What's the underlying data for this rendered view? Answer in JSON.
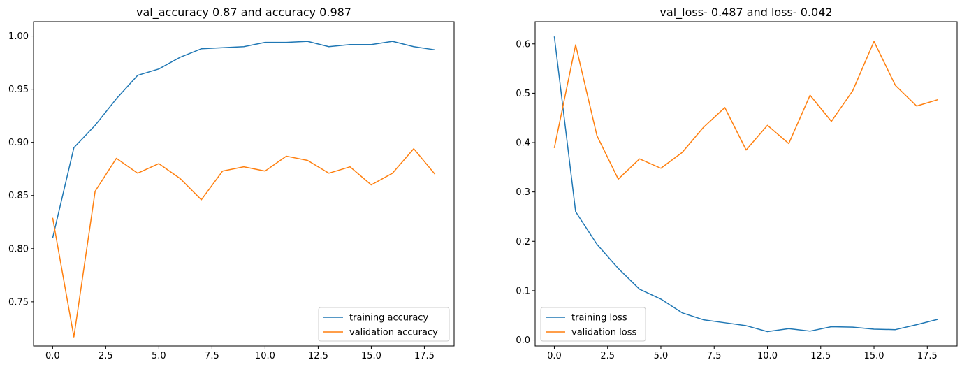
{
  "chart_data": [
    {
      "type": "line",
      "title": "val_accuracy 0.87 and accuracy 0.987",
      "xlabel": "",
      "ylabel": "",
      "xlim": [
        -0.9,
        18.9
      ],
      "ylim": [
        0.7085,
        1.0135
      ],
      "xticks": [
        0.0,
        2.5,
        5.0,
        7.5,
        10.0,
        12.5,
        15.0,
        17.5
      ],
      "xtick_labels": [
        "0.0",
        "2.5",
        "5.0",
        "7.5",
        "10.0",
        "12.5",
        "15.0",
        "17.5"
      ],
      "yticks": [
        0.75,
        0.8,
        0.85,
        0.9,
        0.95,
        1.0
      ],
      "ytick_labels": [
        "0.75",
        "0.80",
        "0.85",
        "0.90",
        "0.95",
        "1.00"
      ],
      "legend_position": "lower right",
      "grid": false,
      "x": [
        0,
        1,
        2,
        3,
        4,
        5,
        6,
        7,
        8,
        9,
        10,
        11,
        12,
        13,
        14,
        15,
        16,
        17,
        18
      ],
      "series": [
        {
          "name": "training accuracy",
          "color": "#1f77b4",
          "values": [
            0.81,
            0.895,
            0.916,
            0.941,
            0.963,
            0.969,
            0.98,
            0.988,
            0.989,
            0.99,
            0.994,
            0.994,
            0.995,
            0.99,
            0.992,
            0.992,
            0.995,
            0.99,
            0.987
          ]
        },
        {
          "name": "validation accuracy",
          "color": "#ff7f0e",
          "values": [
            0.829,
            0.717,
            0.854,
            0.885,
            0.871,
            0.88,
            0.866,
            0.846,
            0.873,
            0.877,
            0.873,
            0.887,
            0.883,
            0.871,
            0.877,
            0.86,
            0.871,
            0.894,
            0.87
          ]
        }
      ]
    },
    {
      "type": "line",
      "title": "val_loss- 0.487 and loss- 0.042",
      "xlabel": "",
      "ylabel": "",
      "xlim": [
        -0.9,
        18.9
      ],
      "ylim": [
        -0.012,
        0.645
      ],
      "xticks": [
        0.0,
        2.5,
        5.0,
        7.5,
        10.0,
        12.5,
        15.0,
        17.5
      ],
      "xtick_labels": [
        "0.0",
        "2.5",
        "5.0",
        "7.5",
        "10.0",
        "12.5",
        "15.0",
        "17.5"
      ],
      "yticks": [
        0.0,
        0.1,
        0.2,
        0.3,
        0.4,
        0.5,
        0.6
      ],
      "ytick_labels": [
        "0.0",
        "0.1",
        "0.2",
        "0.3",
        "0.4",
        "0.5",
        "0.6"
      ],
      "legend_position": "lower left",
      "grid": false,
      "x": [
        0,
        1,
        2,
        3,
        4,
        5,
        6,
        7,
        8,
        9,
        10,
        11,
        12,
        13,
        14,
        15,
        16,
        17,
        18
      ],
      "series": [
        {
          "name": "training loss",
          "color": "#1f77b4",
          "values": [
            0.615,
            0.26,
            0.194,
            0.145,
            0.103,
            0.083,
            0.055,
            0.041,
            0.035,
            0.029,
            0.017,
            0.023,
            0.018,
            0.027,
            0.026,
            0.022,
            0.021,
            0.031,
            0.042
          ]
        },
        {
          "name": "validation loss",
          "color": "#ff7f0e",
          "values": [
            0.389,
            0.598,
            0.414,
            0.326,
            0.367,
            0.348,
            0.38,
            0.431,
            0.471,
            0.385,
            0.435,
            0.398,
            0.496,
            0.443,
            0.505,
            0.605,
            0.516,
            0.474,
            0.487
          ]
        }
      ]
    }
  ]
}
